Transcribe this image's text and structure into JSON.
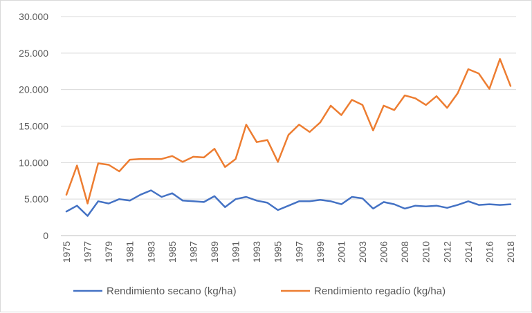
{
  "chart_data": {
    "type": "line",
    "title": "",
    "xlabel": "",
    "ylabel": "",
    "ylim": [
      0,
      30000
    ],
    "y_ticks": [
      "0",
      "5.000",
      "10.000",
      "15.000",
      "20.000",
      "25.000",
      "30.000"
    ],
    "x_tick_labels": [
      "1975",
      "1977",
      "1979",
      "1981",
      "1983",
      "1985",
      "1987",
      "1989",
      "1991",
      "1993",
      "1995",
      "1997",
      "1999",
      "2001",
      "2003",
      "2006",
      "2008",
      "2010",
      "2012",
      "2014",
      "2016",
      "2018"
    ],
    "grid": "horizontal",
    "legend_position": "bottom",
    "series": [
      {
        "name": "Rendimiento secano (kg/ha)",
        "color": "#4472c4",
        "values": [
          3300,
          4100,
          2700,
          4700,
          4400,
          5000,
          4800,
          5600,
          6200,
          5300,
          5800,
          4800,
          4700,
          4600,
          5400,
          3900,
          5000,
          5300,
          4800,
          4500,
          3500,
          4100,
          4700,
          4700,
          4900,
          4700,
          4300,
          5300,
          5100,
          3700,
          4600,
          4300,
          3700,
          4100,
          4000,
          4100,
          3800,
          4200,
          4700,
          4200,
          4300,
          4200,
          4300
        ]
      },
      {
        "name": "Rendimiento regadío (kg/ha)",
        "color": "#ed7d31",
        "values": [
          5600,
          9600,
          4400,
          9900,
          9700,
          8800,
          10400,
          10500,
          10500,
          10500,
          10900,
          10100,
          10800,
          10700,
          11900,
          9400,
          10500,
          15200,
          12800,
          13100,
          10100,
          13800,
          15200,
          14200,
          15500,
          17800,
          16500,
          18600,
          17900,
          14400,
          17800,
          17200,
          19200,
          18800,
          17900,
          19100,
          17500,
          19500,
          22800,
          22200,
          20100,
          24200,
          20500
        ]
      }
    ]
  }
}
